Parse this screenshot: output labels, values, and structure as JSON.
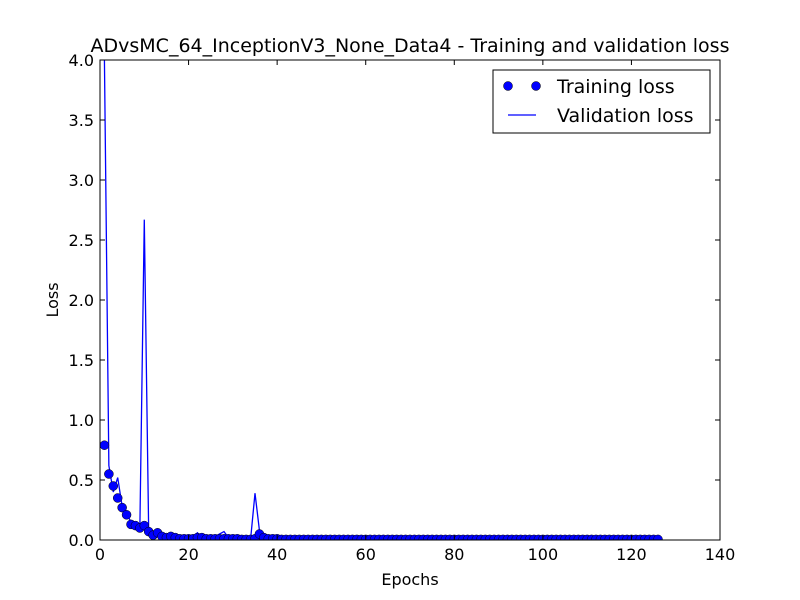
{
  "chart_data": {
    "type": "line",
    "title": "ADvsMC_64_InceptionV3_None_Data4 - Training and validation loss",
    "xlabel": "Epochs",
    "ylabel": "Loss",
    "xlim": [
      0,
      140
    ],
    "ylim": [
      0,
      4.0
    ],
    "xticks": [
      "0",
      "20",
      "40",
      "60",
      "80",
      "100",
      "120",
      "140"
    ],
    "yticks": [
      "0.0",
      "0.5",
      "1.0",
      "1.5",
      "2.0",
      "2.5",
      "3.0",
      "3.5",
      "4.0"
    ],
    "grid": false,
    "legend_position": "top-right",
    "colors": {
      "series": "#0000ff",
      "axes": "#000000"
    },
    "series": [
      {
        "name": "Training loss",
        "style": "markers",
        "x": [
          1,
          2,
          3,
          4,
          5,
          6,
          7,
          8,
          9,
          10,
          11,
          12,
          13,
          14,
          15,
          16,
          17,
          18,
          19,
          20,
          21,
          22,
          23,
          24,
          25,
          26,
          27,
          28,
          29,
          30,
          31,
          32,
          33,
          34,
          35,
          36,
          37,
          38,
          39,
          40,
          41,
          42,
          43,
          44,
          45,
          46,
          47,
          48,
          49,
          50,
          51,
          52,
          53,
          54,
          55,
          56,
          57,
          58,
          59,
          60,
          61,
          62,
          63,
          64,
          65,
          66,
          67,
          68,
          69,
          70,
          71,
          72,
          73,
          74,
          75,
          76,
          77,
          78,
          79,
          80,
          81,
          82,
          83,
          84,
          85,
          86,
          87,
          88,
          89,
          90,
          91,
          92,
          93,
          94,
          95,
          96,
          97,
          98,
          99,
          100,
          101,
          102,
          103,
          104,
          105,
          106,
          107,
          108,
          109,
          110,
          111,
          112,
          113,
          114,
          115,
          116,
          117,
          118,
          119,
          120,
          121,
          122,
          123,
          124,
          125,
          126
        ],
        "y": [
          0.79,
          0.55,
          0.45,
          0.35,
          0.27,
          0.21,
          0.13,
          0.12,
          0.1,
          0.12,
          0.07,
          0.04,
          0.06,
          0.03,
          0.02,
          0.03,
          0.02,
          0.01,
          0.01,
          0.01,
          0.01,
          0.02,
          0.02,
          0.01,
          0.01,
          0.01,
          0.01,
          0.01,
          0.01,
          0.01,
          0.01,
          0.005,
          0.005,
          0.005,
          0.01,
          0.05,
          0.02,
          0.01,
          0.01,
          0.01,
          0.005,
          0.005,
          0.005,
          0.005,
          0.005,
          0.005,
          0.005,
          0.005,
          0.005,
          0.005,
          0.005,
          0.005,
          0.005,
          0.005,
          0.005,
          0.005,
          0.005,
          0.005,
          0.005,
          0.005,
          0.005,
          0.005,
          0.005,
          0.005,
          0.005,
          0.005,
          0.005,
          0.005,
          0.005,
          0.005,
          0.005,
          0.005,
          0.005,
          0.005,
          0.005,
          0.005,
          0.005,
          0.005,
          0.005,
          0.005,
          0.005,
          0.005,
          0.005,
          0.005,
          0.005,
          0.005,
          0.005,
          0.005,
          0.005,
          0.005,
          0.005,
          0.005,
          0.005,
          0.005,
          0.005,
          0.005,
          0.005,
          0.005,
          0.005,
          0.005,
          0.005,
          0.005,
          0.005,
          0.005,
          0.005,
          0.005,
          0.005,
          0.005,
          0.005,
          0.005,
          0.005,
          0.005,
          0.005,
          0.005,
          0.005,
          0.005,
          0.005,
          0.005,
          0.005,
          0.005,
          0.005,
          0.005,
          0.005,
          0.005,
          0.005,
          0.005
        ]
      },
      {
        "name": "Validation loss",
        "style": "line",
        "x": [
          1,
          2,
          3,
          4,
          5,
          6,
          7,
          8,
          9,
          10,
          11,
          12,
          13,
          14,
          15,
          16,
          17,
          18,
          19,
          20,
          21,
          22,
          23,
          24,
          25,
          26,
          27,
          28,
          29,
          30,
          31,
          32,
          33,
          34,
          35,
          36,
          37,
          38,
          39,
          40,
          41,
          45,
          50,
          60,
          70,
          80,
          90,
          100,
          110,
          120,
          126
        ],
        "y": [
          4.0,
          0.62,
          0.4,
          0.52,
          0.28,
          0.22,
          0.15,
          0.14,
          0.1,
          2.67,
          0.05,
          0.03,
          0.04,
          0.02,
          0.02,
          0.01,
          0.01,
          0.01,
          0.01,
          0.01,
          0.03,
          0.06,
          0.02,
          0.02,
          0.01,
          0.03,
          0.05,
          0.07,
          0.02,
          0.01,
          0.01,
          0.005,
          0.005,
          0.005,
          0.39,
          0.08,
          0.02,
          0.01,
          0.02,
          0.01,
          0.005,
          0.005,
          0.005,
          0.005,
          0.005,
          0.005,
          0.005,
          0.005,
          0.005,
          0.005,
          0.005
        ]
      }
    ]
  }
}
